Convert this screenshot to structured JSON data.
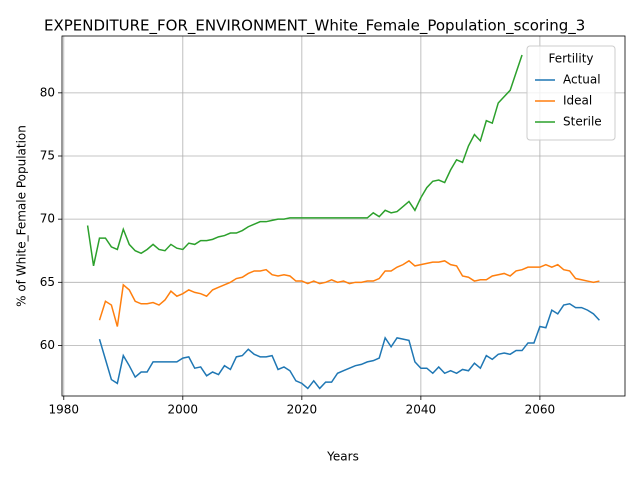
{
  "chart_data": {
    "type": "line",
    "title": "EXPENDITURE_FOR_ENVIRONMENT_White_Female_Population_scoring_3",
    "xlabel": "Years",
    "ylabel": "% of White_Female Population",
    "legend_title": "Fertility",
    "legend_position": "upper right",
    "grid": true,
    "xlim": [
      1979.7,
      2074.3
    ],
    "ylim": [
      56.0,
      84.5
    ],
    "xticks": [
      1980,
      2000,
      2020,
      2040,
      2060
    ],
    "yticks": [
      60,
      65,
      70,
      75,
      80
    ],
    "x": [
      1984,
      1985,
      1986,
      1987,
      1988,
      1989,
      1990,
      1991,
      1992,
      1993,
      1994,
      1995,
      1996,
      1997,
      1998,
      1999,
      2000,
      2001,
      2002,
      2003,
      2004,
      2005,
      2006,
      2007,
      2008,
      2009,
      2010,
      2011,
      2012,
      2013,
      2014,
      2015,
      2016,
      2017,
      2018,
      2019,
      2020,
      2021,
      2022,
      2023,
      2024,
      2025,
      2026,
      2027,
      2028,
      2029,
      2030,
      2031,
      2032,
      2033,
      2034,
      2035,
      2036,
      2037,
      2038,
      2039,
      2040,
      2041,
      2042,
      2043,
      2044,
      2045,
      2046,
      2047,
      2048,
      2049,
      2050,
      2051,
      2052,
      2053,
      2054,
      2055,
      2056,
      2057,
      2058,
      2059,
      2060,
      2061,
      2062,
      2063,
      2064,
      2065,
      2066,
      2067,
      2068,
      2069,
      2070
    ],
    "series": [
      {
        "name": "Actual",
        "color": "#1f77b4",
        "values": [
          null,
          null,
          60.5,
          58.9,
          57.3,
          57.0,
          59.2,
          58.4,
          57.5,
          57.9,
          57.9,
          58.7,
          58.7,
          58.7,
          58.7,
          58.7,
          59.0,
          59.1,
          58.2,
          58.3,
          57.6,
          57.9,
          57.7,
          58.4,
          58.1,
          59.1,
          59.2,
          59.7,
          59.3,
          59.1,
          59.1,
          59.2,
          58.1,
          58.3,
          58.0,
          57.2,
          57.0,
          56.6,
          57.2,
          56.6,
          57.1,
          57.1,
          57.8,
          58.0,
          58.2,
          58.4,
          58.5,
          58.7,
          58.8,
          59.0,
          60.6,
          59.9,
          60.6,
          60.5,
          60.4,
          58.7,
          58.2,
          58.2,
          57.8,
          58.3,
          57.8,
          58.0,
          57.8,
          58.1,
          58.0,
          58.6,
          58.2,
          59.2,
          58.9,
          59.3,
          59.4,
          59.3,
          59.6,
          59.6,
          60.2,
          60.2,
          61.5,
          61.4,
          62.8,
          62.5,
          63.2,
          63.3,
          63.0,
          63.0,
          62.8,
          62.5,
          62.0
        ]
      },
      {
        "name": "Ideal",
        "color": "#ff7f0e",
        "values": [
          null,
          null,
          62.0,
          63.5,
          63.2,
          61.5,
          64.8,
          64.4,
          63.5,
          63.3,
          63.3,
          63.4,
          63.2,
          63.6,
          64.3,
          63.9,
          64.1,
          64.4,
          64.2,
          64.1,
          63.9,
          64.4,
          64.6,
          64.8,
          65.0,
          65.3,
          65.4,
          65.7,
          65.9,
          65.9,
          66.0,
          65.6,
          65.5,
          65.6,
          65.5,
          65.1,
          65.1,
          64.9,
          65.1,
          64.9,
          65.0,
          65.2,
          65.0,
          65.1,
          64.9,
          65.0,
          65.0,
          65.1,
          65.1,
          65.3,
          65.9,
          65.9,
          66.2,
          66.4,
          66.7,
          66.3,
          66.4,
          66.5,
          66.6,
          66.6,
          66.7,
          66.4,
          66.3,
          65.5,
          65.4,
          65.1,
          65.2,
          65.2,
          65.5,
          65.6,
          65.7,
          65.5,
          65.9,
          66.0,
          66.2,
          66.2,
          66.2,
          66.4,
          66.2,
          66.4,
          66.0,
          65.9,
          65.3,
          65.2,
          65.1,
          65.0,
          65.1
        ]
      },
      {
        "name": "Sterile",
        "color": "#2ca02c",
        "values": [
          69.5,
          66.3,
          68.5,
          68.5,
          67.8,
          67.6,
          69.2,
          68.0,
          67.5,
          67.3,
          67.6,
          68.0,
          67.6,
          67.5,
          68.0,
          67.7,
          67.6,
          68.1,
          68.0,
          68.3,
          68.3,
          68.4,
          68.6,
          68.7,
          68.9,
          68.9,
          69.1,
          69.4,
          69.6,
          69.8,
          69.8,
          69.9,
          70.0,
          70.0,
          70.1,
          70.1,
          70.1,
          70.1,
          70.1,
          70.1,
          70.1,
          70.1,
          70.1,
          70.1,
          70.1,
          70.1,
          70.1,
          70.1,
          70.5,
          70.2,
          70.7,
          70.5,
          70.6,
          71.0,
          71.4,
          70.7,
          71.7,
          72.5,
          73.0,
          73.1,
          72.9,
          73.9,
          74.7,
          74.5,
          75.8,
          76.7,
          76.2,
          77.8,
          77.6,
          79.2,
          79.7,
          80.2,
          81.6,
          83.0,
          null,
          null,
          null,
          null,
          null,
          null,
          null,
          null,
          null,
          null,
          null,
          null,
          null
        ]
      }
    ]
  }
}
